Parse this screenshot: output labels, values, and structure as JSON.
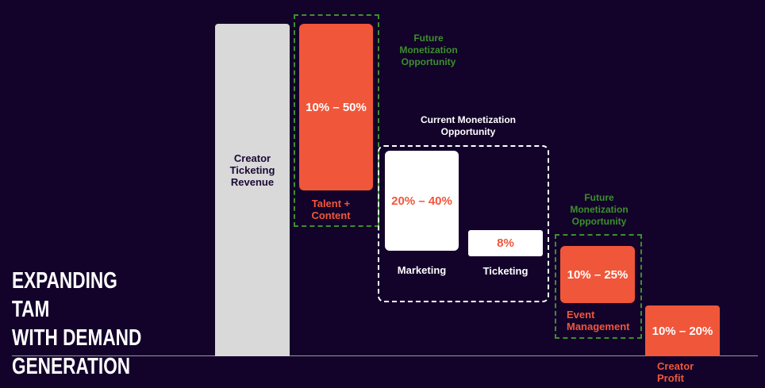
{
  "title": [
    "EXPANDING TAM",
    "WITH DEMAND",
    "GENERATION"
  ],
  "annotations": {
    "future_1": "Future\nMonetization\nOpportunity",
    "current": "Current Monetization\nOpportunity",
    "future_2": "Future\nMonetization\nOpportunity"
  },
  "blocks": [
    {
      "label": "Creator\nTicketing\nRevenue"
    },
    {
      "value": "10% – 50%",
      "label": "Talent +\nContent"
    },
    {
      "value": "20% – 40%",
      "label": "Marketing"
    },
    {
      "value": "8%",
      "label": "Ticketing"
    },
    {
      "value": "10% – 25%",
      "label": "Event\nManagement"
    },
    {
      "value": "10% – 20%",
      "label": "Creator\nProfit"
    }
  ]
}
